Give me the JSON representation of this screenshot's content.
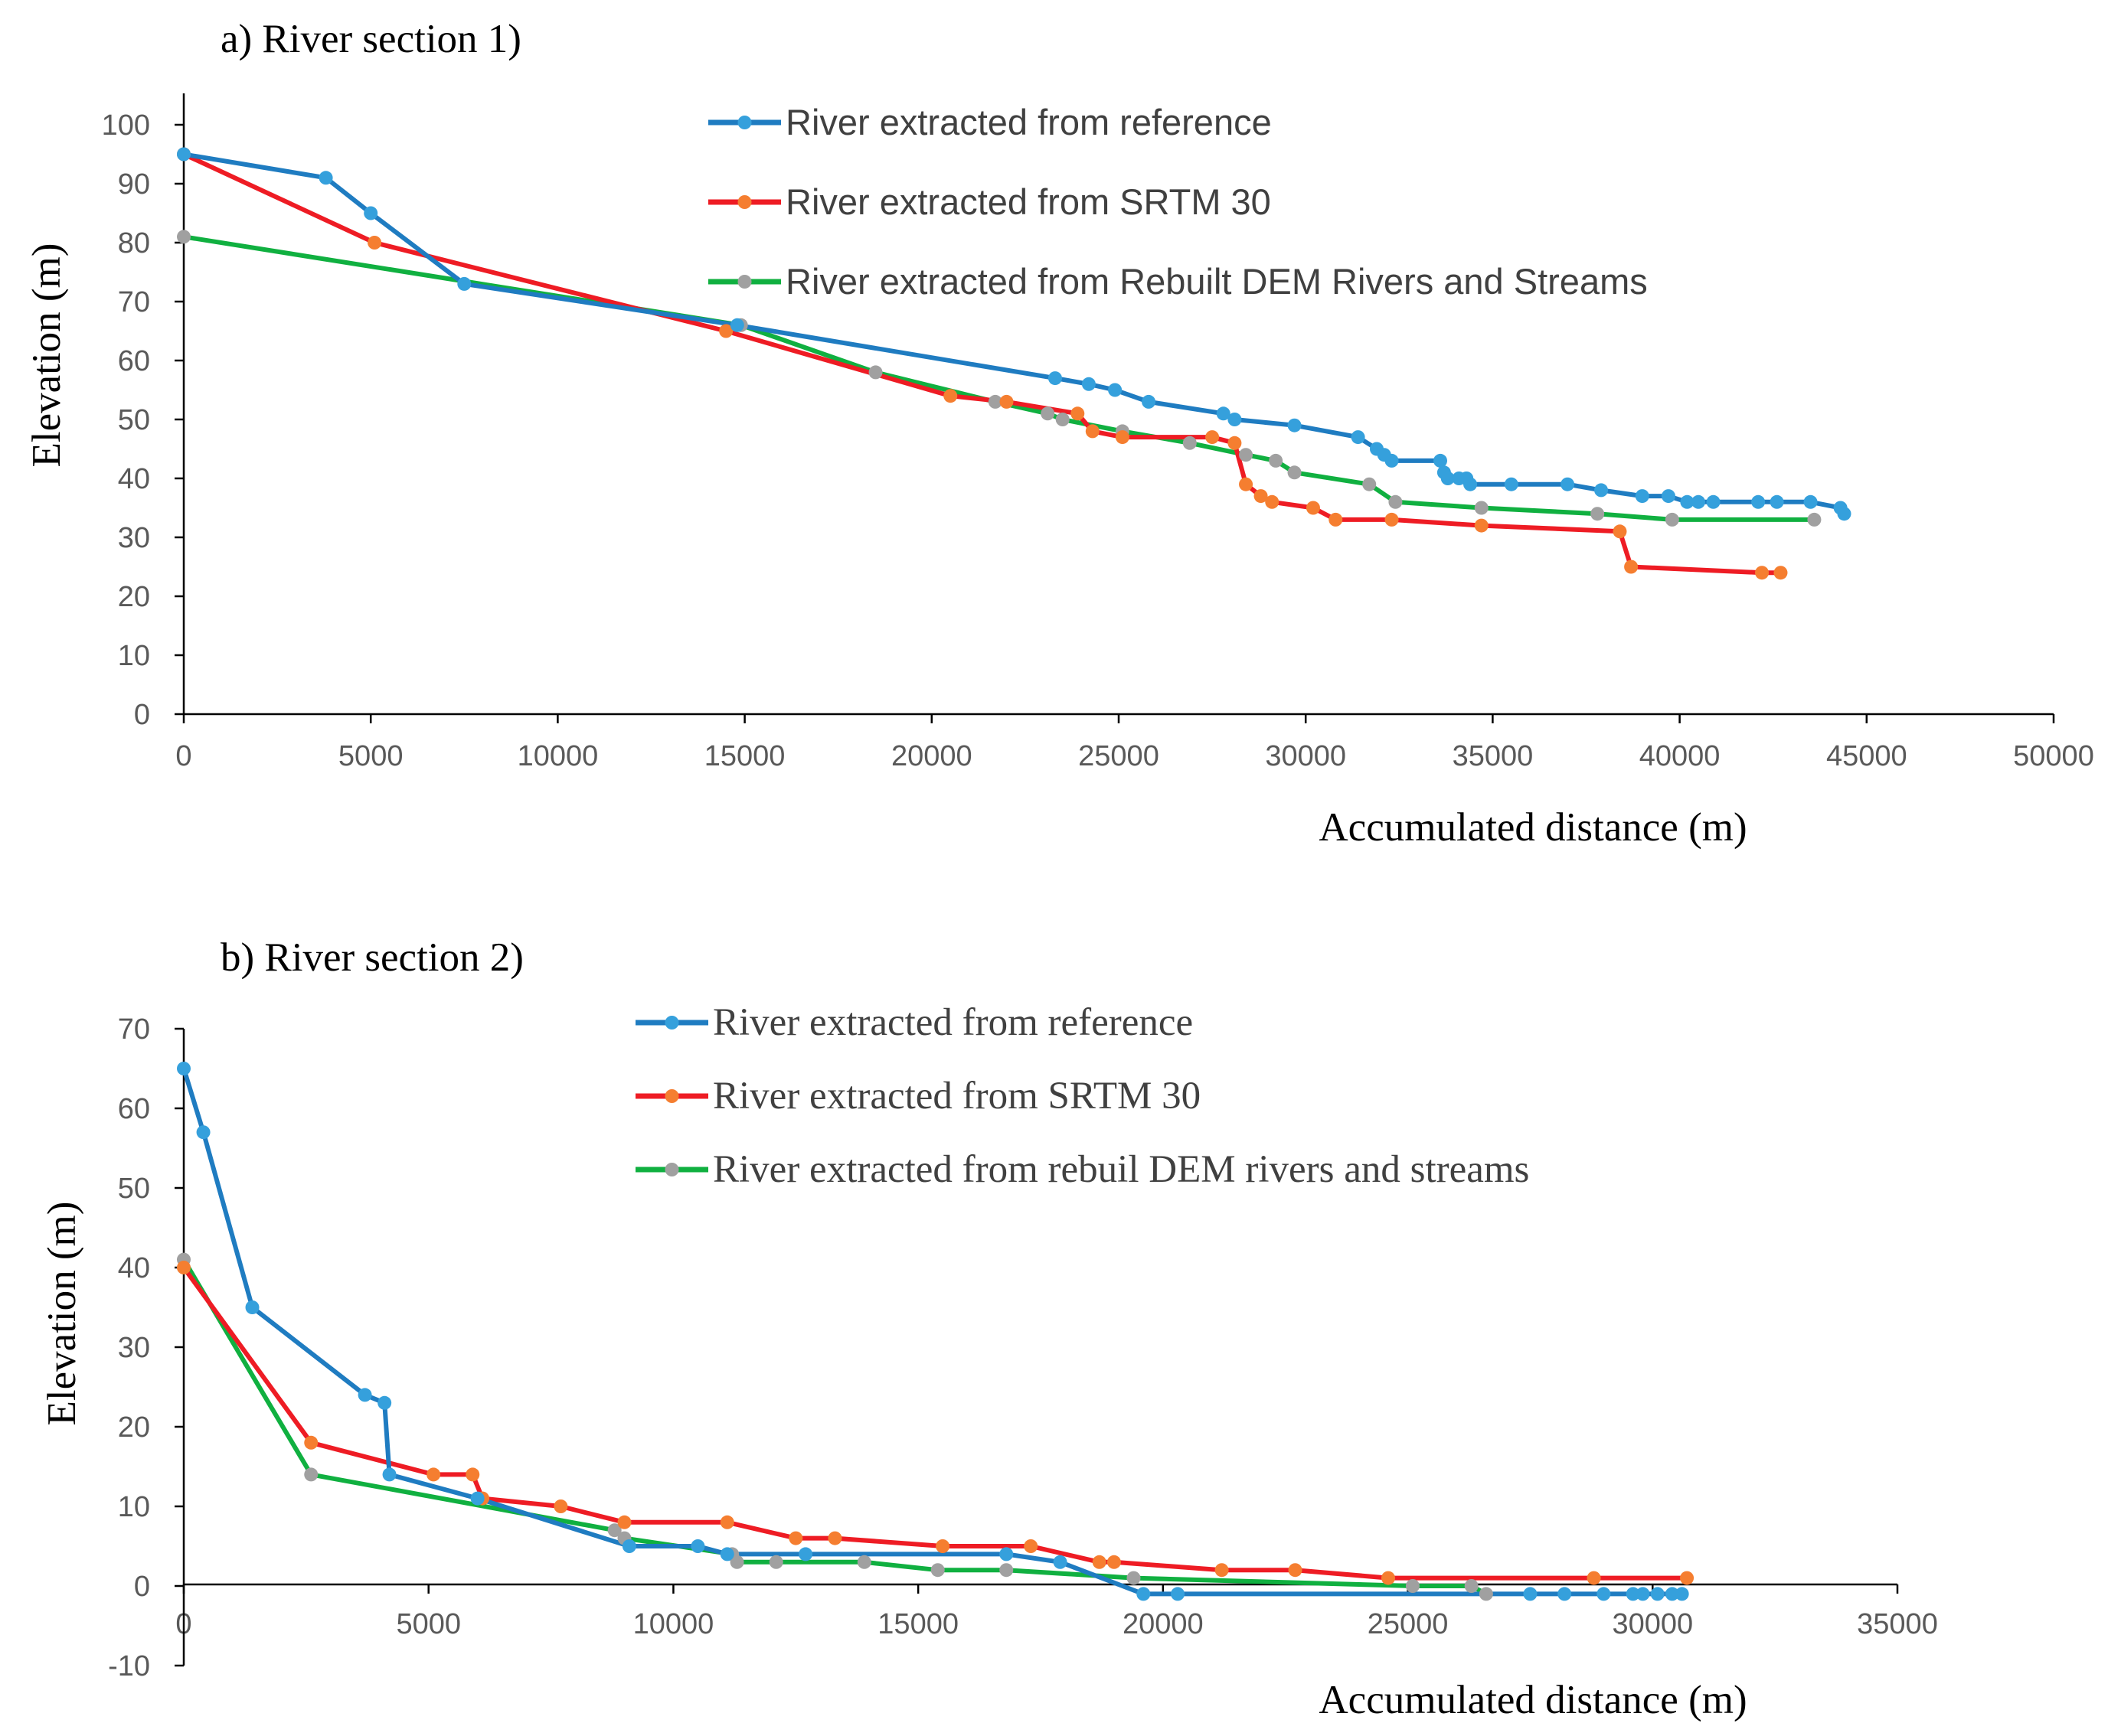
{
  "chart_data": [
    {
      "type": "line",
      "title": "a) River section 1)",
      "xlabel": "Accumulated distance (m)",
      "ylabel": "Elevation  (m)",
      "xlim": [
        0,
        50000
      ],
      "ylim": [
        0,
        100
      ],
      "xticks": [
        0,
        5000,
        10000,
        15000,
        20000,
        25000,
        30000,
        35000,
        40000,
        45000,
        50000
      ],
      "yticks": [
        0,
        10,
        20,
        30,
        40,
        50,
        60,
        70,
        80,
        90,
        100
      ],
      "legend_position": "top",
      "series": [
        {
          "name": "River extracted from reference",
          "color": "#1F7CC1",
          "marker_color": "#35A0DC",
          "points": [
            [
              0,
              95
            ],
            [
              3800,
              91
            ],
            [
              5000,
              85
            ],
            [
              7500,
              73
            ],
            [
              14800,
              66
            ],
            [
              23300,
              57
            ],
            [
              24200,
              56
            ],
            [
              24900,
              55
            ],
            [
              25800,
              53
            ],
            [
              27800,
              51
            ],
            [
              28100,
              50
            ],
            [
              29700,
              49
            ],
            [
              31400,
              47
            ],
            [
              31900,
              45
            ],
            [
              32100,
              44
            ],
            [
              32300,
              43
            ],
            [
              33600,
              43
            ],
            [
              33700,
              41
            ],
            [
              33800,
              40
            ],
            [
              34100,
              40
            ],
            [
              34300,
              40
            ],
            [
              34400,
              39
            ],
            [
              35500,
              39
            ],
            [
              37000,
              39
            ],
            [
              37900,
              38
            ],
            [
              39000,
              37
            ],
            [
              39700,
              37
            ],
            [
              40200,
              36
            ],
            [
              40500,
              36
            ],
            [
              40900,
              36
            ],
            [
              42100,
              36
            ],
            [
              42600,
              36
            ],
            [
              43500,
              36
            ],
            [
              44300,
              35
            ],
            [
              44400,
              34
            ]
          ]
        },
        {
          "name": "River extracted from SRTM 30",
          "color": "#EE1C24",
          "marker_color": "#F57E30",
          "points": [
            [
              0,
              95
            ],
            [
              5100,
              80
            ],
            [
              14500,
              65
            ],
            [
              20500,
              54
            ],
            [
              22000,
              53
            ],
            [
              23900,
              51
            ],
            [
              24300,
              48
            ],
            [
              25100,
              47
            ],
            [
              27500,
              47
            ],
            [
              28100,
              46
            ],
            [
              28400,
              39
            ],
            [
              28800,
              37
            ],
            [
              29100,
              36
            ],
            [
              30200,
              35
            ],
            [
              30800,
              33
            ],
            [
              32300,
              33
            ],
            [
              34700,
              32
            ],
            [
              38400,
              31
            ],
            [
              38700,
              25
            ],
            [
              42200,
              24
            ],
            [
              42700,
              24
            ]
          ]
        },
        {
          "name": "River extracted from Rebuilt DEM Rivers and Streams",
          "color": "#10B040",
          "marker_color": "#A0A0A0",
          "points": [
            [
              0,
              81
            ],
            [
              14900,
              66
            ],
            [
              18500,
              58
            ],
            [
              21700,
              53
            ],
            [
              23100,
              51
            ],
            [
              23500,
              50
            ],
            [
              25100,
              48
            ],
            [
              26900,
              46
            ],
            [
              28400,
              44
            ],
            [
              29200,
              43
            ],
            [
              29700,
              41
            ],
            [
              31700,
              39
            ],
            [
              32400,
              36
            ],
            [
              34700,
              35
            ],
            [
              37800,
              34
            ],
            [
              39800,
              33
            ],
            [
              43600,
              33
            ]
          ]
        }
      ]
    },
    {
      "type": "line",
      "title": "b) River section 2)",
      "xlabel": "Accumulated distance (m)",
      "ylabel": "Elevation  (m)",
      "xlim": [
        0,
        35000
      ],
      "ylim": [
        -10,
        70
      ],
      "xticks": [
        0,
        5000,
        10000,
        15000,
        20000,
        25000,
        30000,
        35000
      ],
      "yticks": [
        -10,
        0,
        10,
        20,
        30,
        40,
        50,
        60,
        70
      ],
      "legend_position": "top",
      "series": [
        {
          "name": "River extracted from reference",
          "color": "#1F7CC1",
          "marker_color": "#35A0DC",
          "points": [
            [
              0,
              65
            ],
            [
              400,
              57
            ],
            [
              1400,
              35
            ],
            [
              3700,
              24
            ],
            [
              4100,
              23
            ],
            [
              4200,
              14
            ],
            [
              6000,
              11
            ],
            [
              9100,
              5
            ],
            [
              10500,
              5
            ],
            [
              11100,
              4
            ],
            [
              12700,
              4
            ],
            [
              16800,
              4
            ],
            [
              17900,
              3
            ],
            [
              19600,
              -1
            ],
            [
              20300,
              -1
            ],
            [
              27500,
              -1
            ],
            [
              28200,
              -1
            ],
            [
              29000,
              -1
            ],
            [
              29600,
              -1
            ],
            [
              29800,
              -1
            ],
            [
              30100,
              -1
            ],
            [
              30400,
              -1
            ],
            [
              30600,
              -1
            ]
          ]
        },
        {
          "name": "River extracted from SRTM 30",
          "color": "#EE1C24",
          "marker_color": "#F57E30",
          "points": [
            [
              0,
              40
            ],
            [
              2600,
              18
            ],
            [
              5100,
              14
            ],
            [
              5900,
              14
            ],
            [
              6100,
              11
            ],
            [
              7700,
              10
            ],
            [
              9000,
              8
            ],
            [
              11100,
              8
            ],
            [
              12500,
              6
            ],
            [
              13300,
              6
            ],
            [
              15500,
              5
            ],
            [
              17300,
              5
            ],
            [
              18700,
              3
            ],
            [
              19000,
              3
            ],
            [
              21200,
              2
            ],
            [
              22700,
              2
            ],
            [
              24600,
              1
            ],
            [
              28800,
              1
            ],
            [
              30700,
              1
            ]
          ]
        },
        {
          "name": "River extracted from rebuil DEM rivers and streams",
          "color": "#10B040",
          "marker_color": "#A0A0A0",
          "points": [
            [
              0,
              41
            ],
            [
              2600,
              14
            ],
            [
              8800,
              7
            ],
            [
              9000,
              6
            ],
            [
              11200,
              4
            ],
            [
              11300,
              3
            ],
            [
              12100,
              3
            ],
            [
              13900,
              3
            ],
            [
              15400,
              2
            ],
            [
              16800,
              2
            ],
            [
              19400,
              1
            ],
            [
              25100,
              0
            ],
            [
              26300,
              0
            ],
            [
              26600,
              -1
            ]
          ]
        }
      ]
    }
  ]
}
